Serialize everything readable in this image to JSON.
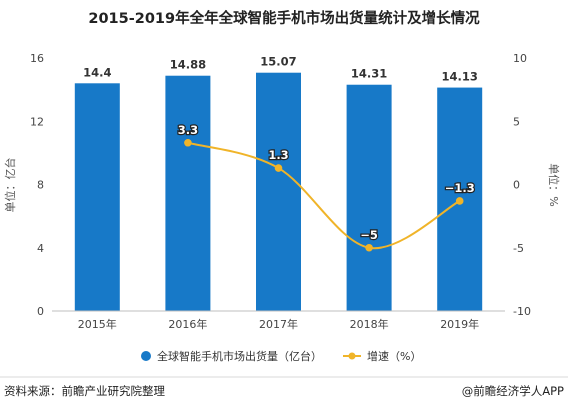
{
  "chart_data": {
    "type": "bar",
    "title": "2015-2019年全年全球智能手机市场出货量统计及增长情况",
    "categories": [
      "2015年",
      "2016年",
      "2017年",
      "2018年",
      "2019年"
    ],
    "series": [
      {
        "name": "全球智能手机市场出货量（亿台）",
        "type": "bar",
        "axis": "left",
        "values": [
          14.4,
          14.88,
          15.07,
          14.31,
          14.13
        ],
        "labels": [
          "14.4",
          "14.88",
          "15.07",
          "14.31",
          "14.13"
        ],
        "color": "#1779c8"
      },
      {
        "name": "增速（%）",
        "type": "line",
        "axis": "right",
        "smooth": true,
        "values": [
          null,
          3.3,
          1.3,
          -5,
          -1.3
        ],
        "labels": [
          "",
          "3.3",
          "1.3",
          "−5",
          "−1.3"
        ],
        "color": "#f0b429"
      }
    ],
    "y_left": {
      "label": "单位：亿台",
      "ylim": [
        0,
        16
      ],
      "ticks": [
        0,
        4,
        8,
        12,
        16
      ],
      "tick_labels": [
        "0",
        "4",
        "8",
        "12",
        "16"
      ]
    },
    "y_right": {
      "label": "单位：%",
      "ylim": [
        -10,
        10
      ],
      "ticks": [
        -10,
        -5,
        0,
        5,
        10
      ],
      "tick_labels": [
        "-10",
        "-5",
        "0",
        "5",
        "10"
      ]
    },
    "grid": false,
    "legend_position": "bottom"
  },
  "footer": {
    "source": "资料来源：前瞻产业研究院整理",
    "brand": "@前瞻经济学人APP"
  },
  "colors": {
    "bar": "#1779c8",
    "line": "#f0b429",
    "axis_text": "#444444",
    "title": "#222222"
  }
}
